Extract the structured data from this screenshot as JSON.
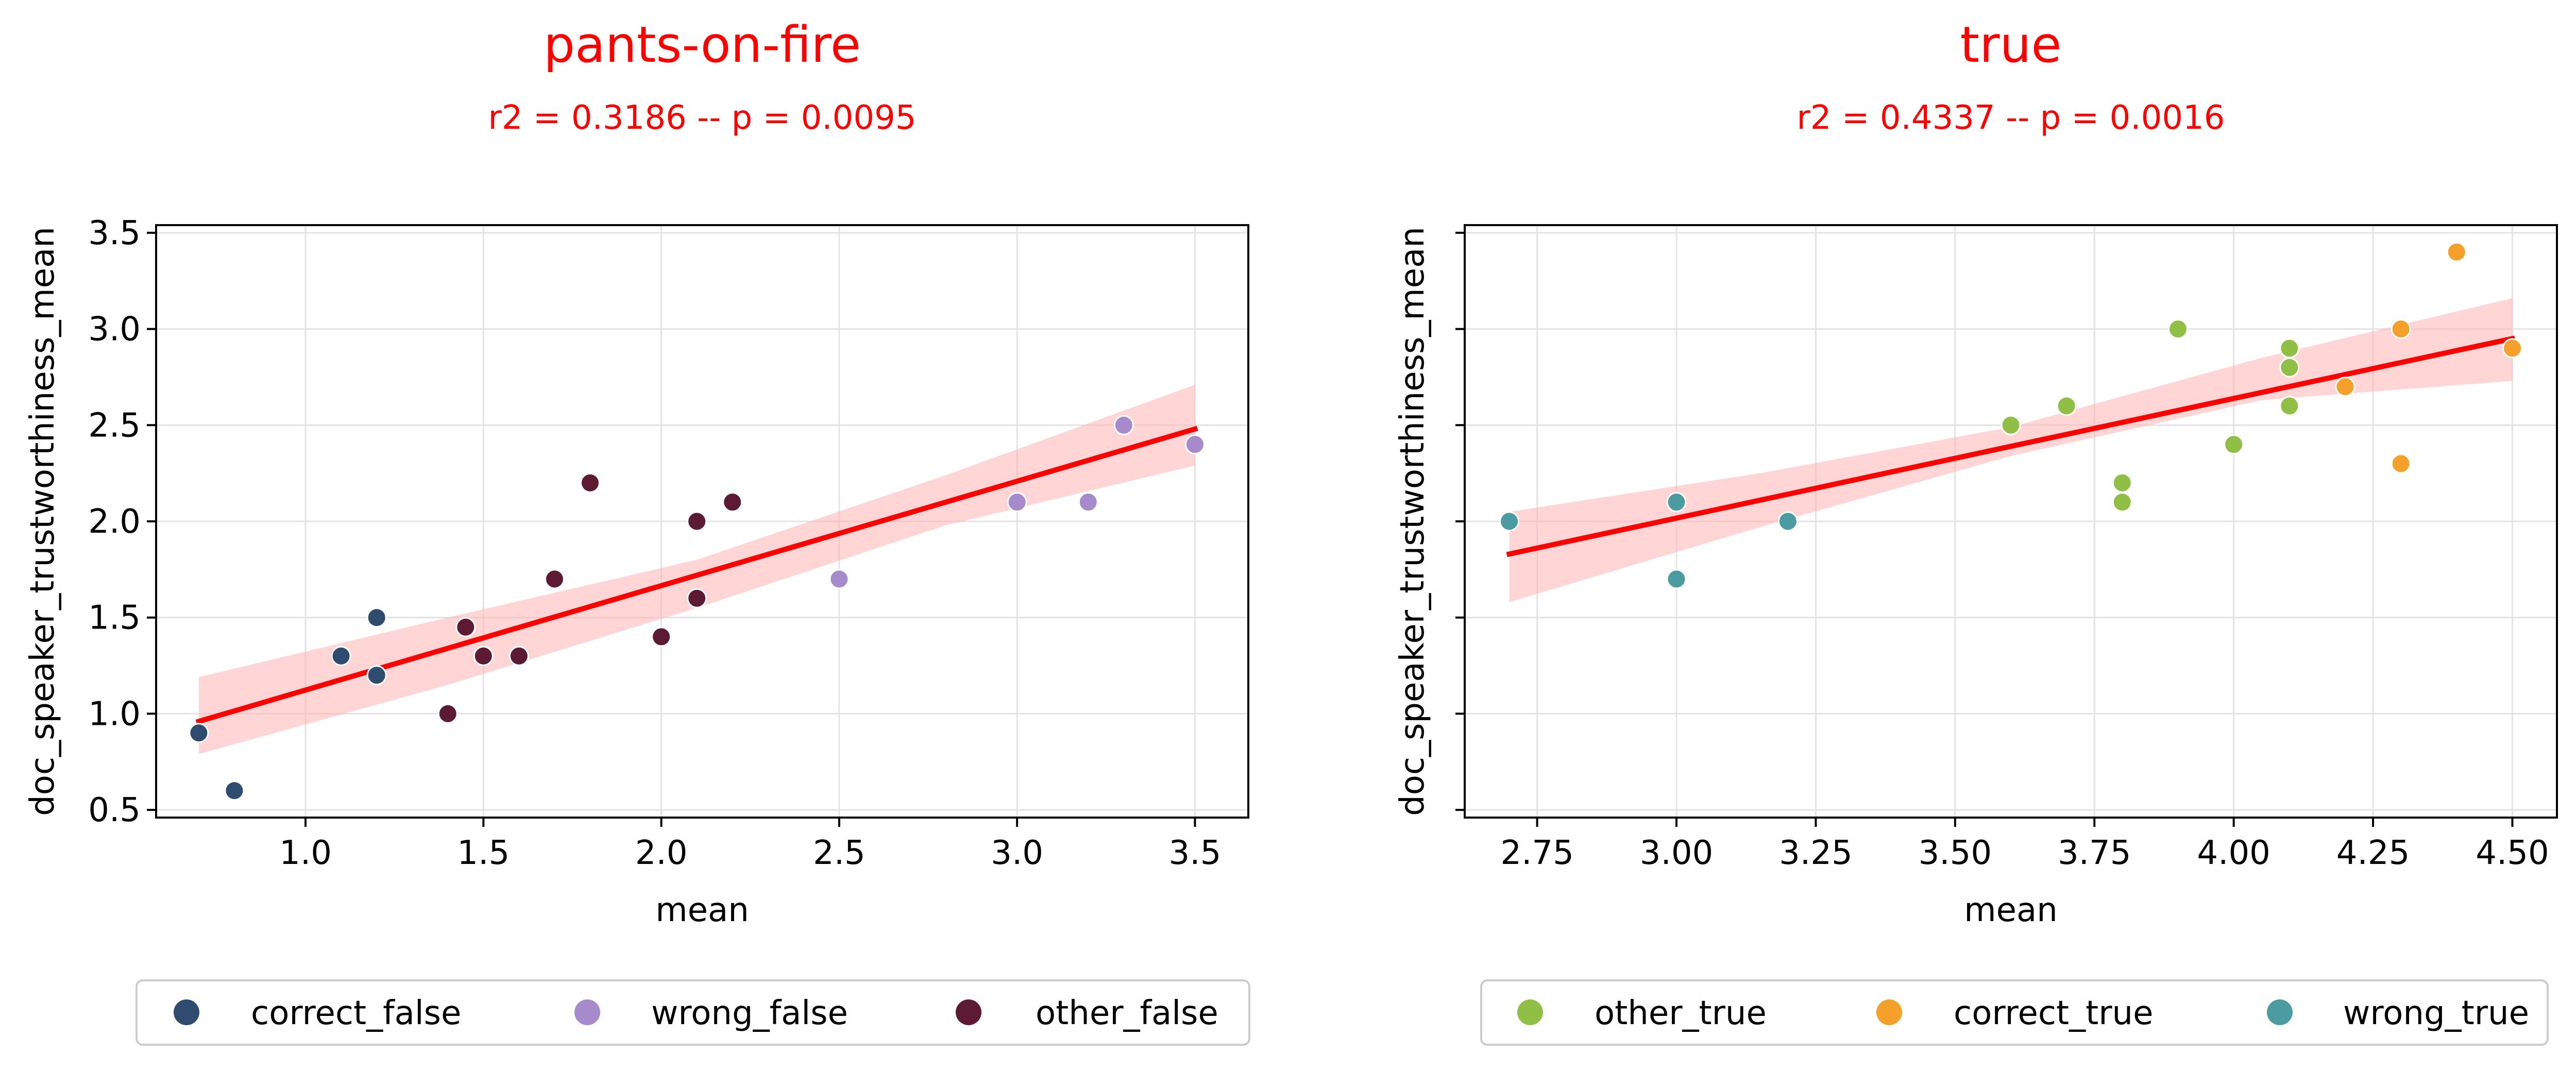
{
  "colors": {
    "title": "#ff0000",
    "fit_line": "#ff0000",
    "confidence_band": "#ffb3b3",
    "correct_false": "#2f4b6e",
    "wrong_false": "#a68acc",
    "other_false": "#5c1a33",
    "other_true": "#8fbf45",
    "correct_true": "#f5a02b",
    "wrong_true": "#4b9ca0"
  },
  "chart_data": [
    {
      "type": "scatter",
      "title": "pants-on-fire",
      "subtitle": "r2 = 0.3186 -- p = 0.0095",
      "xlabel": "mean",
      "ylabel": "doc_speaker_trustworthiness_mean",
      "xlim": [
        0.58,
        3.65
      ],
      "ylim": [
        0.46,
        3.54
      ],
      "xticks": [
        1.0,
        1.5,
        2.0,
        2.5,
        3.0,
        3.5
      ],
      "xtick_labels": [
        "1.0",
        "1.5",
        "2.0",
        "2.5",
        "3.0",
        "3.5"
      ],
      "yticks": [
        0.5,
        1.0,
        1.5,
        2.0,
        2.5,
        3.0,
        3.5
      ],
      "ytick_labels": [
        "0.5",
        "1.0",
        "1.5",
        "2.0",
        "2.5",
        "3.0",
        "3.5"
      ],
      "grid": true,
      "legend_position": "bottom",
      "regression": {
        "x": [
          0.7,
          3.5
        ],
        "y": [
          0.96,
          2.48
        ],
        "band_x": [
          0.7,
          1.4,
          2.1,
          2.8,
          3.5
        ],
        "band_lower": [
          0.79,
          1.15,
          1.55,
          1.98,
          2.29
        ],
        "band_upper": [
          1.19,
          1.5,
          1.8,
          2.24,
          2.71
        ]
      },
      "series": [
        {
          "name": "correct_false",
          "x": [
            0.7,
            0.8,
            1.1,
            1.2,
            1.2
          ],
          "y": [
            0.9,
            0.6,
            1.3,
            1.5,
            1.2
          ]
        },
        {
          "name": "wrong_false",
          "x": [
            2.5,
            3.0,
            3.2,
            3.3,
            3.5
          ],
          "y": [
            1.7,
            2.1,
            2.1,
            2.5,
            2.4
          ]
        },
        {
          "name": "other_false",
          "x": [
            1.4,
            1.45,
            1.5,
            1.6,
            1.7,
            1.8,
            2.0,
            2.1,
            2.1,
            2.2
          ],
          "y": [
            1.0,
            1.45,
            1.3,
            1.3,
            1.7,
            2.2,
            1.4,
            2.0,
            1.6,
            2.1
          ]
        }
      ]
    },
    {
      "type": "scatter",
      "title": "true",
      "subtitle": "r2 = 0.4337 -- p = 0.0016",
      "xlabel": "mean",
      "ylabel": "doc_speaker_trustworthiness_mean",
      "xlim": [
        2.62,
        4.58
      ],
      "ylim": [
        0.46,
        3.54
      ],
      "xticks": [
        2.75,
        3.0,
        3.25,
        3.5,
        3.75,
        4.0,
        4.25,
        4.5
      ],
      "xtick_labels": [
        "2.75",
        "3.00",
        "3.25",
        "3.50",
        "3.75",
        "4.00",
        "4.25",
        "4.50"
      ],
      "yticks": [
        0.5,
        1.0,
        1.5,
        2.0,
        2.5,
        3.0,
        3.5
      ],
      "ytick_labels": [],
      "grid": true,
      "legend_position": "bottom",
      "regression": {
        "x": [
          2.7,
          4.5
        ],
        "y": [
          1.83,
          2.95
        ],
        "band_x": [
          2.7,
          3.15,
          3.6,
          4.05,
          4.5
        ],
        "band_lower": [
          1.58,
          1.97,
          2.34,
          2.63,
          2.73
        ],
        "band_upper": [
          2.05,
          2.25,
          2.49,
          2.85,
          3.16
        ]
      },
      "series": [
        {
          "name": "other_true",
          "x": [
            3.6,
            3.7,
            3.8,
            3.8,
            3.9,
            4.0,
            4.1,
            4.1,
            4.1
          ],
          "y": [
            2.5,
            2.6,
            2.2,
            2.1,
            3.0,
            2.4,
            2.9,
            2.8,
            2.6
          ]
        },
        {
          "name": "correct_true",
          "x": [
            4.2,
            4.3,
            4.3,
            4.4,
            4.5
          ],
          "y": [
            2.7,
            3.0,
            2.3,
            3.4,
            2.9
          ]
        },
        {
          "name": "wrong_true",
          "x": [
            2.7,
            3.0,
            3.0,
            3.2
          ],
          "y": [
            2.0,
            2.1,
            1.7,
            2.0
          ]
        }
      ]
    }
  ]
}
